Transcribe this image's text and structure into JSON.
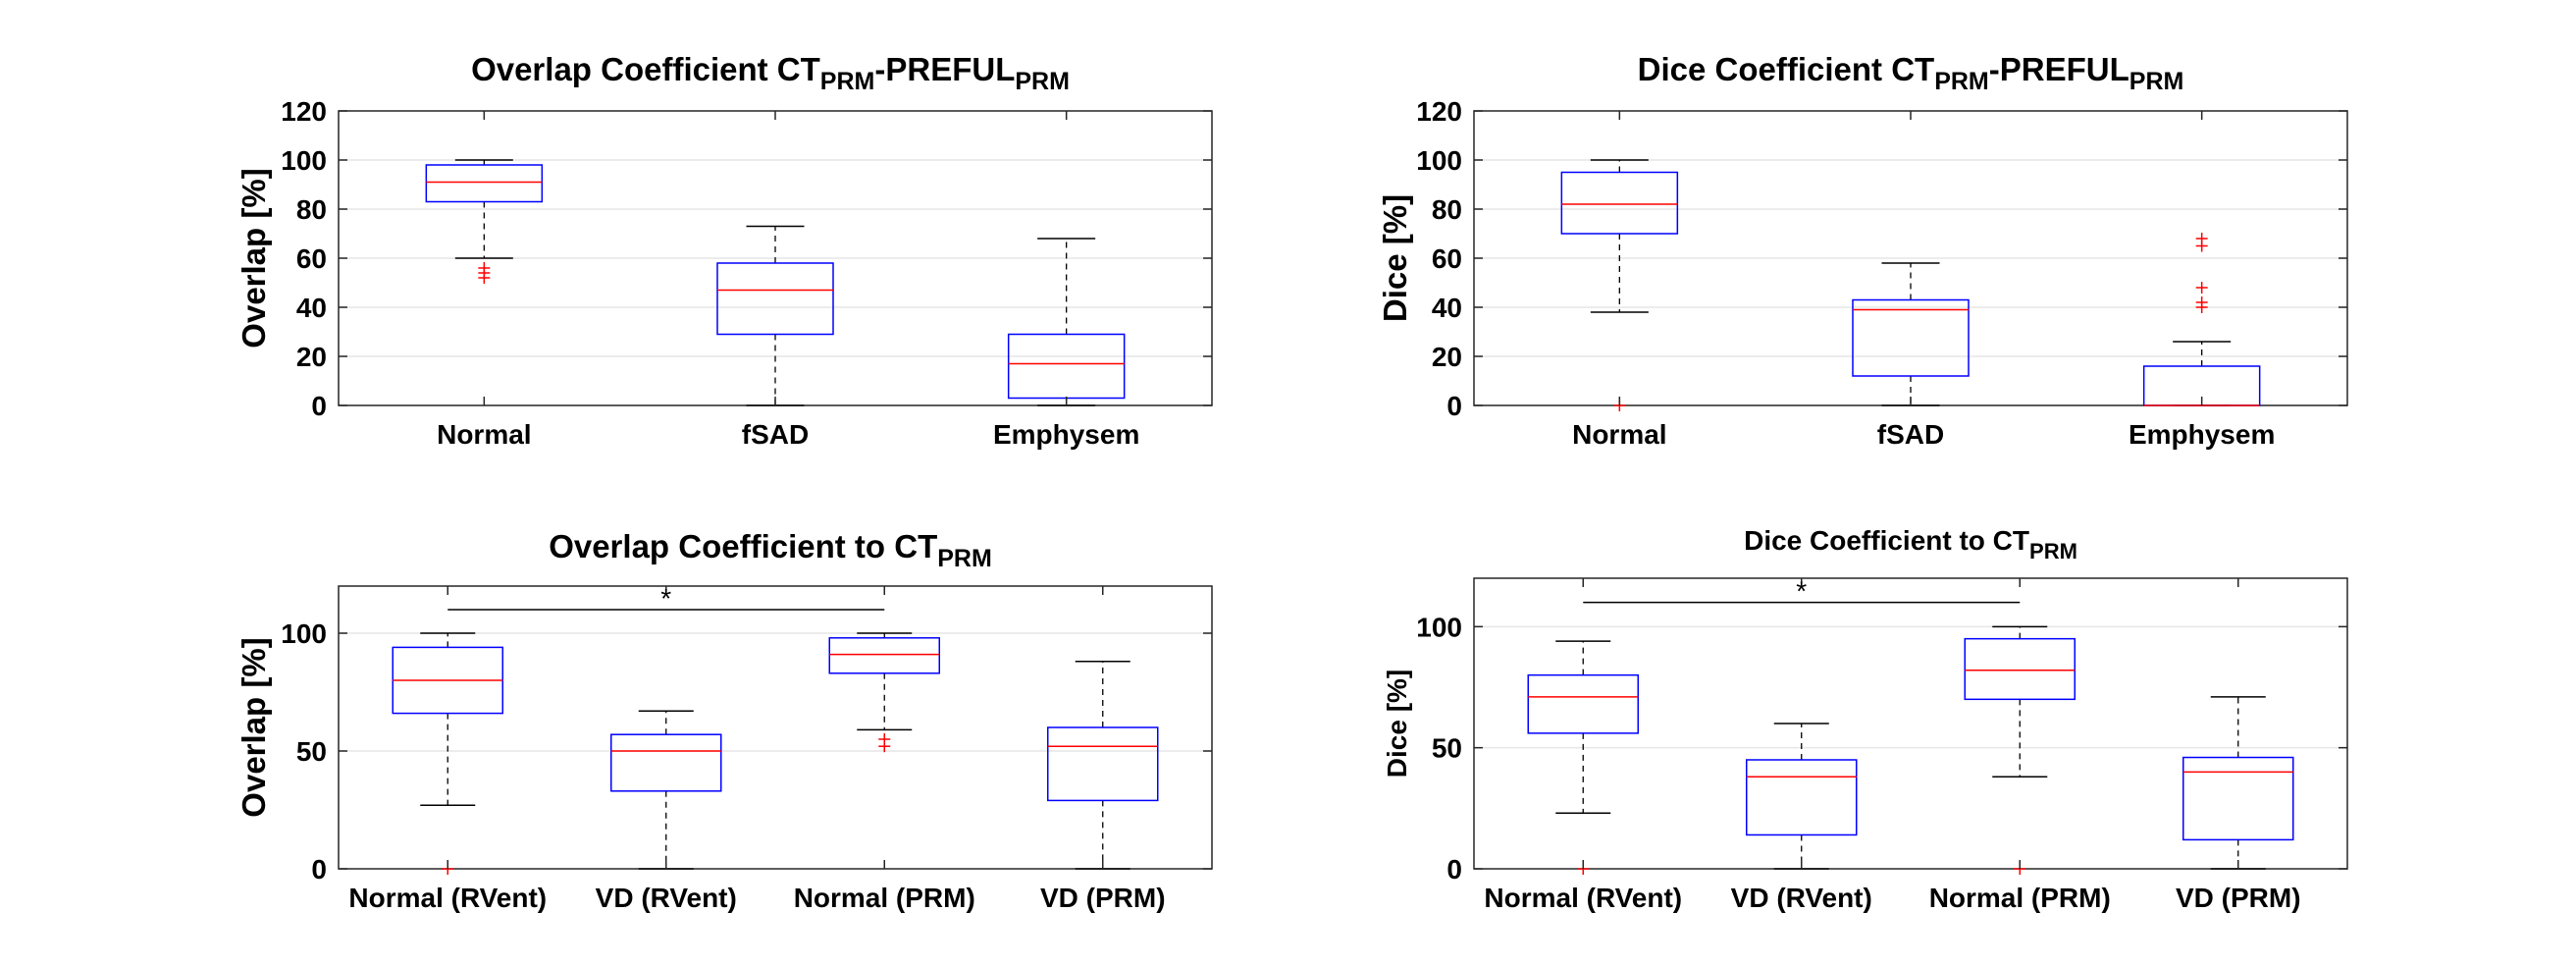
{
  "chart_data": [
    {
      "type": "boxplot",
      "title": {
        "main": "Overlap Coefficient CT",
        "sub1": "PRM",
        "mid": "-PREFUL",
        "sub2": "PRM"
      },
      "ylabel": "Overlap [%]",
      "ylim": [
        0,
        120
      ],
      "yticks": [
        0,
        20,
        40,
        60,
        80,
        100,
        120
      ],
      "yticklabels": [
        "0",
        "20",
        "40",
        "60",
        "80",
        "100",
        "120"
      ],
      "grid": "horizontal",
      "categories": [
        "Normal",
        "fSAD",
        "Emphysem"
      ],
      "boxes": [
        {
          "whisker_low": 60,
          "q1": 83,
          "median": 91,
          "q3": 98,
          "whisker_high": 100,
          "outliers": [
            52,
            54,
            56
          ]
        },
        {
          "whisker_low": 0,
          "q1": 29,
          "median": 47,
          "q3": 58,
          "whisker_high": 73,
          "outliers": []
        },
        {
          "whisker_low": 0,
          "q1": 3,
          "median": 17,
          "q3": 29,
          "whisker_high": 68,
          "outliers": []
        }
      ]
    },
    {
      "type": "boxplot",
      "title": {
        "main": "Dice Coefficient CT",
        "sub1": "PRM",
        "mid": "-PREFUL",
        "sub2": "PRM"
      },
      "ylabel": "Dice [%]",
      "ylim": [
        0,
        120
      ],
      "yticks": [
        0,
        20,
        40,
        60,
        80,
        100,
        120
      ],
      "yticklabels": [
        "0",
        "20",
        "40",
        "60",
        "80",
        "100",
        "120"
      ],
      "grid": "horizontal",
      "categories": [
        "Normal",
        "fSAD",
        "Emphysem"
      ],
      "boxes": [
        {
          "whisker_low": 38,
          "q1": 70,
          "median": 82,
          "q3": 95,
          "whisker_high": 100,
          "outliers": [
            0
          ]
        },
        {
          "whisker_low": 0,
          "q1": 12,
          "median": 39,
          "q3": 43,
          "whisker_high": 58,
          "outliers": []
        },
        {
          "whisker_low": 0,
          "q1": 0,
          "median": 0,
          "q3": 16,
          "whisker_high": 26,
          "outliers": [
            40,
            42,
            48,
            65,
            68
          ]
        }
      ]
    },
    {
      "type": "boxplot",
      "title": {
        "main": "Overlap Coefficient to CT",
        "sub1": "PRM"
      },
      "ylabel": "Overlap [%]",
      "ylim": [
        0,
        120
      ],
      "yticks": [
        0,
        50,
        100
      ],
      "yticklabels": [
        "0",
        "50",
        "100"
      ],
      "grid": "horizontal",
      "categories": [
        "Normal (RVent)",
        "VD (RVent)",
        "Normal (PRM)",
        "VD (PRM)"
      ],
      "boxes": [
        {
          "whisker_low": 27,
          "q1": 66,
          "median": 80,
          "q3": 94,
          "whisker_high": 100,
          "outliers": [
            0
          ]
        },
        {
          "whisker_low": 0,
          "q1": 33,
          "median": 50,
          "q3": 57,
          "whisker_high": 67,
          "outliers": []
        },
        {
          "whisker_low": 59,
          "q1": 83,
          "median": 91,
          "q3": 98,
          "whisker_high": 100,
          "outliers": [
            52,
            55
          ]
        },
        {
          "whisker_low": 0,
          "q1": 29,
          "median": 52,
          "q3": 60,
          "whisker_high": 88,
          "outliers": []
        }
      ],
      "significance": {
        "from": 0,
        "to": 2,
        "y": 110,
        "label": "*"
      }
    },
    {
      "type": "boxplot",
      "title": {
        "main": "Dice Coefficient to CT",
        "sub1": "PRM"
      },
      "ylabel": "Dice [%]",
      "ylim": [
        0,
        120
      ],
      "yticks": [
        0,
        50,
        100
      ],
      "yticklabels": [
        "0",
        "50",
        "100"
      ],
      "grid": "horizontal",
      "categories": [
        "Normal (RVent)",
        "VD (RVent)",
        "Normal (PRM)",
        "VD (PRM)"
      ],
      "boxes": [
        {
          "whisker_low": 23,
          "q1": 56,
          "median": 71,
          "q3": 80,
          "whisker_high": 94,
          "outliers": [
            0
          ]
        },
        {
          "whisker_low": 0,
          "q1": 14,
          "median": 38,
          "q3": 45,
          "whisker_high": 60,
          "outliers": []
        },
        {
          "whisker_low": 38,
          "q1": 70,
          "median": 82,
          "q3": 95,
          "whisker_high": 100,
          "outliers": [
            0
          ]
        },
        {
          "whisker_low": 0,
          "q1": 12,
          "median": 40,
          "q3": 46,
          "whisker_high": 71,
          "outliers": []
        }
      ],
      "significance": {
        "from": 0,
        "to": 2,
        "y": 110,
        "label": "*"
      }
    }
  ]
}
